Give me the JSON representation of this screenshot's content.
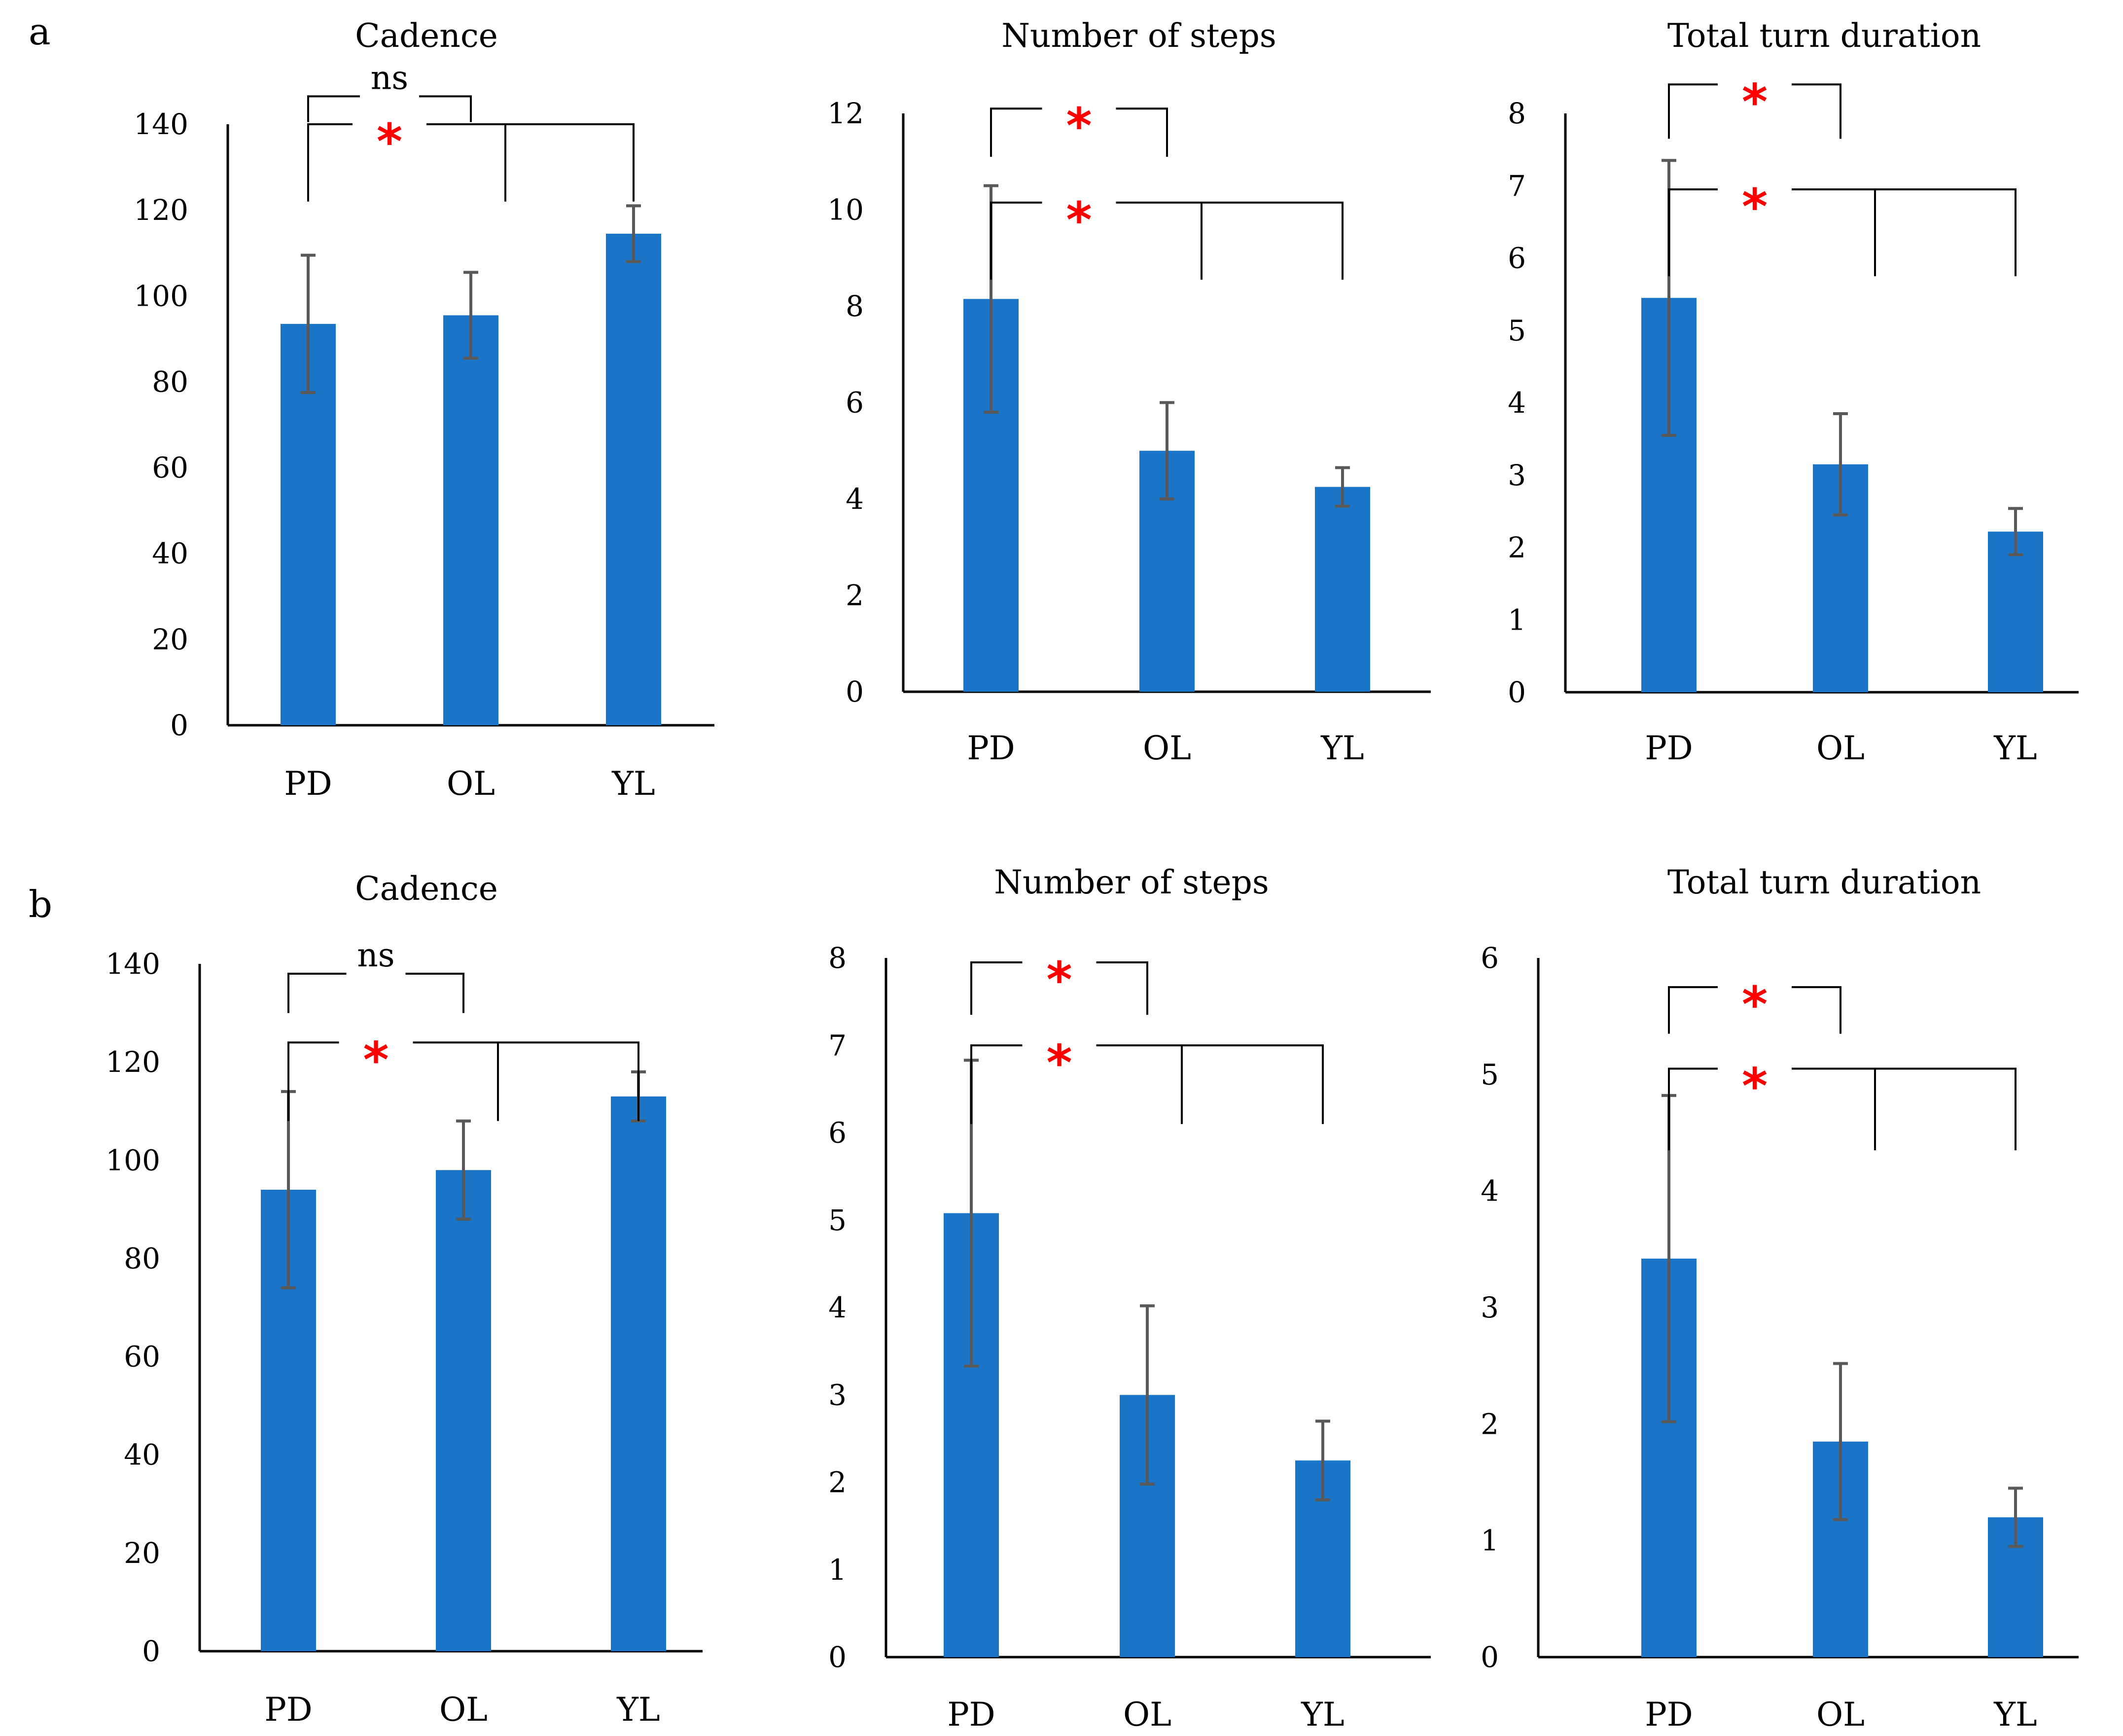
{
  "panel_labels": [
    "a",
    "b"
  ],
  "colors": {
    "bar": "#1a74c8",
    "error": "#595959",
    "star": "#ff0000"
  },
  "chart_data": [
    {
      "type": "bar",
      "panel": "a",
      "title": "Cadence",
      "categories": [
        "PD",
        "OL",
        "YL"
      ],
      "values": [
        93.5,
        95.5,
        114.5
      ],
      "errors": [
        16,
        10,
        6.5
      ],
      "ylim": [
        0,
        140
      ],
      "yticks": [
        0,
        20,
        40,
        60,
        80,
        100,
        120,
        140
      ],
      "ytick_labels": [
        "0",
        "20",
        "40",
        "60",
        "80",
        "100",
        "120",
        "140"
      ],
      "annotations": [
        {
          "from": 0,
          "to": 1,
          "label": "ns",
          "kind": "text",
          "y": 146.5,
          "drop": 6
        },
        {
          "from": 0,
          "to": 2,
          "label": "*",
          "kind": "star",
          "y": 140,
          "drop": 18
        }
      ]
    },
    {
      "type": "bar",
      "panel": "a",
      "title": "Number of steps",
      "categories": [
        "PD",
        "OL",
        "YL"
      ],
      "values": [
        8.15,
        5.0,
        4.25
      ],
      "errors": [
        2.35,
        1.0,
        0.4
      ],
      "ylim": [
        0,
        12
      ],
      "yticks": [
        0,
        2,
        4,
        6,
        8,
        10,
        12
      ],
      "ytick_labels": [
        "0",
        "2",
        "4",
        "6",
        "8",
        "10",
        "12"
      ],
      "annotations": [
        {
          "from": 0,
          "to": 1,
          "label": "*",
          "kind": "star",
          "y": 12.1,
          "drop": 1
        },
        {
          "from": 0,
          "to": 2,
          "label": "*",
          "kind": "star",
          "y": 10.15,
          "drop": 1.6
        }
      ]
    },
    {
      "type": "bar",
      "panel": "a",
      "title": "Total turn duration",
      "categories": [
        "PD",
        "OL",
        "YL"
      ],
      "values": [
        5.45,
        3.15,
        2.22
      ],
      "errors": [
        1.9,
        0.7,
        0.32
      ],
      "ylim": [
        0,
        8
      ],
      "yticks": [
        0,
        1,
        2,
        3,
        4,
        5,
        6,
        7,
        8
      ],
      "ytick_labels": [
        "0",
        "1",
        "2",
        "3",
        "4",
        "5",
        "6",
        "7",
        "8"
      ],
      "annotations": [
        {
          "from": 0,
          "to": 1,
          "label": "*",
          "kind": "star",
          "y": 8.4,
          "drop": 0.75
        },
        {
          "from": 0,
          "to": 2,
          "label": "*",
          "kind": "star",
          "y": 6.95,
          "drop": 1.2
        }
      ]
    },
    {
      "type": "bar",
      "panel": "b",
      "title": "Cadence",
      "categories": [
        "PD",
        "OL",
        "YL"
      ],
      "values": [
        94,
        98,
        113
      ],
      "errors": [
        20,
        10,
        5
      ],
      "ylim": [
        0,
        140
      ],
      "yticks": [
        0,
        20,
        40,
        60,
        80,
        100,
        120,
        140
      ],
      "ytick_labels": [
        "0",
        "20",
        "40",
        "60",
        "80",
        "100",
        "120",
        "140"
      ],
      "annotations": [
        {
          "from": 0,
          "to": 1,
          "label": "ns",
          "kind": "text",
          "y": 138,
          "drop": 8
        },
        {
          "from": 0,
          "to": 2,
          "label": "*",
          "kind": "star",
          "y": 124,
          "drop": 16
        }
      ]
    },
    {
      "type": "bar",
      "panel": "b",
      "title": "Number of steps",
      "categories": [
        "PD",
        "OL",
        "YL"
      ],
      "values": [
        5.08,
        3.0,
        2.25
      ],
      "errors": [
        1.75,
        1.02,
        0.45
      ],
      "ylim": [
        0,
        8
      ],
      "yticks": [
        0,
        1,
        2,
        3,
        4,
        5,
        6,
        7,
        8
      ],
      "ytick_labels": [
        "0",
        "1",
        "2",
        "3",
        "4",
        "5",
        "6",
        "7",
        "8"
      ],
      "annotations": [
        {
          "from": 0,
          "to": 1,
          "label": "*",
          "kind": "star",
          "y": 7.95,
          "drop": 0.6
        },
        {
          "from": 0,
          "to": 2,
          "label": "*",
          "kind": "star",
          "y": 7.0,
          "drop": 0.9
        }
      ]
    },
    {
      "type": "bar",
      "panel": "b",
      "title": "Total turn duration",
      "categories": [
        "PD",
        "OL",
        "YL"
      ],
      "values": [
        3.42,
        1.85,
        1.2
      ],
      "errors": [
        1.4,
        0.67,
        0.25
      ],
      "ylim": [
        0,
        6
      ],
      "yticks": [
        0,
        1,
        2,
        3,
        4,
        5,
        6
      ],
      "ytick_labels": [
        "0",
        "1",
        "2",
        "3",
        "4",
        "5",
        "6"
      ],
      "annotations": [
        {
          "from": 0,
          "to": 1,
          "label": "*",
          "kind": "star",
          "y": 5.75,
          "drop": 0.4
        },
        {
          "from": 0,
          "to": 2,
          "label": "*",
          "kind": "star",
          "y": 5.05,
          "drop": 0.7
        }
      ]
    }
  ]
}
